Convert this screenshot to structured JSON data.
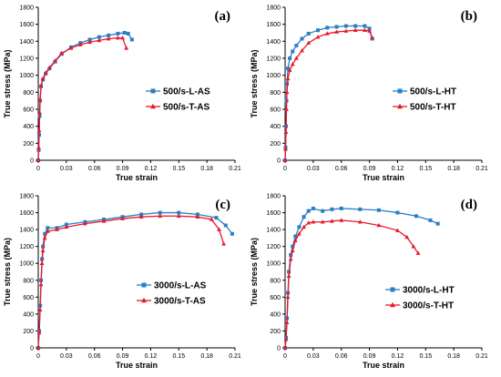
{
  "colors": {
    "blue": "#2b7fc4",
    "red": "#e8192c"
  },
  "chart_data": [
    {
      "type": "line",
      "panel_label": "(a)",
      "xlabel": "True strain",
      "ylabel": "True stress  (MPa)",
      "xlim": [
        0,
        0.21
      ],
      "ylim": [
        0,
        1800
      ],
      "xticks": [
        "0",
        "0.03",
        "0.06",
        "0.09",
        "0.12",
        "0.15",
        "0.18",
        "0.21"
      ],
      "yticks": [
        "0",
        "200",
        "400",
        "600",
        "800",
        "1000",
        "1200",
        "1400",
        "1600",
        "1800"
      ],
      "legend_position": "center-right",
      "series": [
        {
          "name": "500/s-L-AS",
          "color": "blue",
          "marker": "square",
          "x": [
            0,
            0.0005,
            0.001,
            0.0015,
            0.002,
            0.003,
            0.005,
            0.008,
            0.012,
            0.018,
            0.025,
            0.035,
            0.045,
            0.055,
            0.065,
            0.075,
            0.085,
            0.092,
            0.096,
            0.1
          ],
          "y": [
            0,
            120,
            300,
            520,
            700,
            870,
            950,
            1020,
            1080,
            1160,
            1250,
            1330,
            1380,
            1420,
            1450,
            1470,
            1490,
            1500,
            1490,
            1420
          ]
        },
        {
          "name": "500/s-T-AS",
          "color": "red",
          "marker": "triangle",
          "x": [
            0,
            0.0005,
            0.001,
            0.0015,
            0.002,
            0.003,
            0.005,
            0.008,
            0.012,
            0.018,
            0.025,
            0.035,
            0.045,
            0.055,
            0.065,
            0.075,
            0.085,
            0.09,
            0.094
          ],
          "y": [
            0,
            150,
            350,
            560,
            720,
            880,
            960,
            1030,
            1090,
            1170,
            1260,
            1320,
            1360,
            1390,
            1410,
            1430,
            1440,
            1440,
            1320
          ]
        }
      ]
    },
    {
      "type": "line",
      "panel_label": "(b)",
      "xlabel": "True strain",
      "ylabel": "True stress  (MPa)",
      "xlim": [
        0,
        0.21
      ],
      "ylim": [
        0,
        1800
      ],
      "xticks": [
        "0",
        "0.03",
        "0.06",
        "0.09",
        "0.12",
        "0.15",
        "0.18",
        "0.21"
      ],
      "yticks": [
        "0",
        "200",
        "400",
        "600",
        "800",
        "1000",
        "1200",
        "1400",
        "1600",
        "1800"
      ],
      "legend_position": "center-right",
      "series": [
        {
          "name": "500/s-L-HT",
          "color": "blue",
          "marker": "square",
          "x": [
            0,
            0.0005,
            0.001,
            0.0015,
            0.002,
            0.003,
            0.005,
            0.008,
            0.012,
            0.018,
            0.025,
            0.035,
            0.045,
            0.055,
            0.065,
            0.075,
            0.085,
            0.09,
            0.093
          ],
          "y": [
            0,
            150,
            400,
            700,
            900,
            1080,
            1200,
            1280,
            1350,
            1430,
            1490,
            1530,
            1560,
            1570,
            1580,
            1580,
            1580,
            1550,
            1430
          ]
        },
        {
          "name": "500/s-T-HT",
          "color": "red",
          "marker": "triangle",
          "x": [
            0,
            0.0005,
            0.001,
            0.0015,
            0.002,
            0.003,
            0.005,
            0.008,
            0.012,
            0.018,
            0.025,
            0.035,
            0.045,
            0.055,
            0.065,
            0.075,
            0.085,
            0.09,
            0.093
          ],
          "y": [
            0,
            130,
            330,
            600,
            800,
            960,
            1060,
            1130,
            1200,
            1290,
            1380,
            1450,
            1490,
            1510,
            1520,
            1530,
            1530,
            1520,
            1440
          ]
        }
      ]
    },
    {
      "type": "line",
      "panel_label": "(c)",
      "xlabel": "True strain",
      "ylabel": "True stress  (MPa)",
      "xlim": [
        0,
        0.21
      ],
      "ylim": [
        0,
        1800
      ],
      "xticks": [
        "0",
        "0.03",
        "0.06",
        "0.09",
        "0.12",
        "0.15",
        "0.18",
        "0.21"
      ],
      "yticks": [
        "0",
        "200",
        "400",
        "600",
        "800",
        "1000",
        "1200",
        "1400",
        "1600",
        "1800"
      ],
      "legend_position": "bottom-center",
      "series": [
        {
          "name": "3000/s-L-AS",
          "color": "blue",
          "marker": "square",
          "x": [
            0,
            0.001,
            0.002,
            0.003,
            0.004,
            0.005,
            0.007,
            0.01,
            0.02,
            0.03,
            0.05,
            0.07,
            0.09,
            0.11,
            0.13,
            0.15,
            0.17,
            0.19,
            0.2,
            0.207
          ],
          "y": [
            0,
            200,
            500,
            800,
            1050,
            1200,
            1350,
            1420,
            1420,
            1460,
            1490,
            1520,
            1550,
            1580,
            1600,
            1600,
            1580,
            1540,
            1450,
            1350
          ]
        },
        {
          "name": "3000/s-T-AS",
          "color": "red",
          "marker": "triangle",
          "x": [
            0,
            0.001,
            0.002,
            0.003,
            0.004,
            0.005,
            0.007,
            0.01,
            0.02,
            0.03,
            0.05,
            0.07,
            0.09,
            0.11,
            0.13,
            0.15,
            0.17,
            0.185,
            0.193,
            0.198
          ],
          "y": [
            0,
            180,
            450,
            750,
            1000,
            1150,
            1300,
            1380,
            1400,
            1430,
            1470,
            1500,
            1530,
            1550,
            1560,
            1560,
            1550,
            1520,
            1400,
            1230
          ]
        }
      ]
    },
    {
      "type": "line",
      "panel_label": "(d)",
      "xlabel": "True strain",
      "ylabel": "True stress  (MPa)",
      "xlim": [
        0,
        0.21
      ],
      "ylim": [
        0,
        1800
      ],
      "xticks": [
        "0",
        "0.03",
        "0.06",
        "0.09",
        "0.12",
        "0.15",
        "0.18",
        "0.21"
      ],
      "yticks": [
        "0",
        "200",
        "400",
        "600",
        "800",
        "1000",
        "1200",
        "1400",
        "1600",
        "1800"
      ],
      "legend_position": "bottom-right",
      "series": [
        {
          "name": "3000/s-L-HT",
          "color": "blue",
          "marker": "square",
          "x": [
            0,
            0.001,
            0.002,
            0.003,
            0.004,
            0.006,
            0.008,
            0.011,
            0.015,
            0.02,
            0.025,
            0.03,
            0.04,
            0.05,
            0.06,
            0.08,
            0.1,
            0.12,
            0.14,
            0.155,
            0.163
          ],
          "y": [
            0,
            120,
            350,
            650,
            900,
            1100,
            1200,
            1320,
            1430,
            1550,
            1620,
            1650,
            1620,
            1640,
            1650,
            1640,
            1630,
            1600,
            1560,
            1510,
            1470
          ]
        },
        {
          "name": "3000/s-T-HT",
          "color": "red",
          "marker": "triangle",
          "x": [
            0,
            0.001,
            0.002,
            0.003,
            0.004,
            0.006,
            0.008,
            0.011,
            0.015,
            0.02,
            0.025,
            0.03,
            0.04,
            0.05,
            0.06,
            0.08,
            0.1,
            0.12,
            0.13,
            0.137,
            0.142
          ],
          "y": [
            0,
            100,
            300,
            600,
            850,
            1050,
            1150,
            1270,
            1350,
            1430,
            1480,
            1490,
            1490,
            1500,
            1510,
            1490,
            1450,
            1390,
            1310,
            1200,
            1120
          ]
        }
      ]
    }
  ]
}
